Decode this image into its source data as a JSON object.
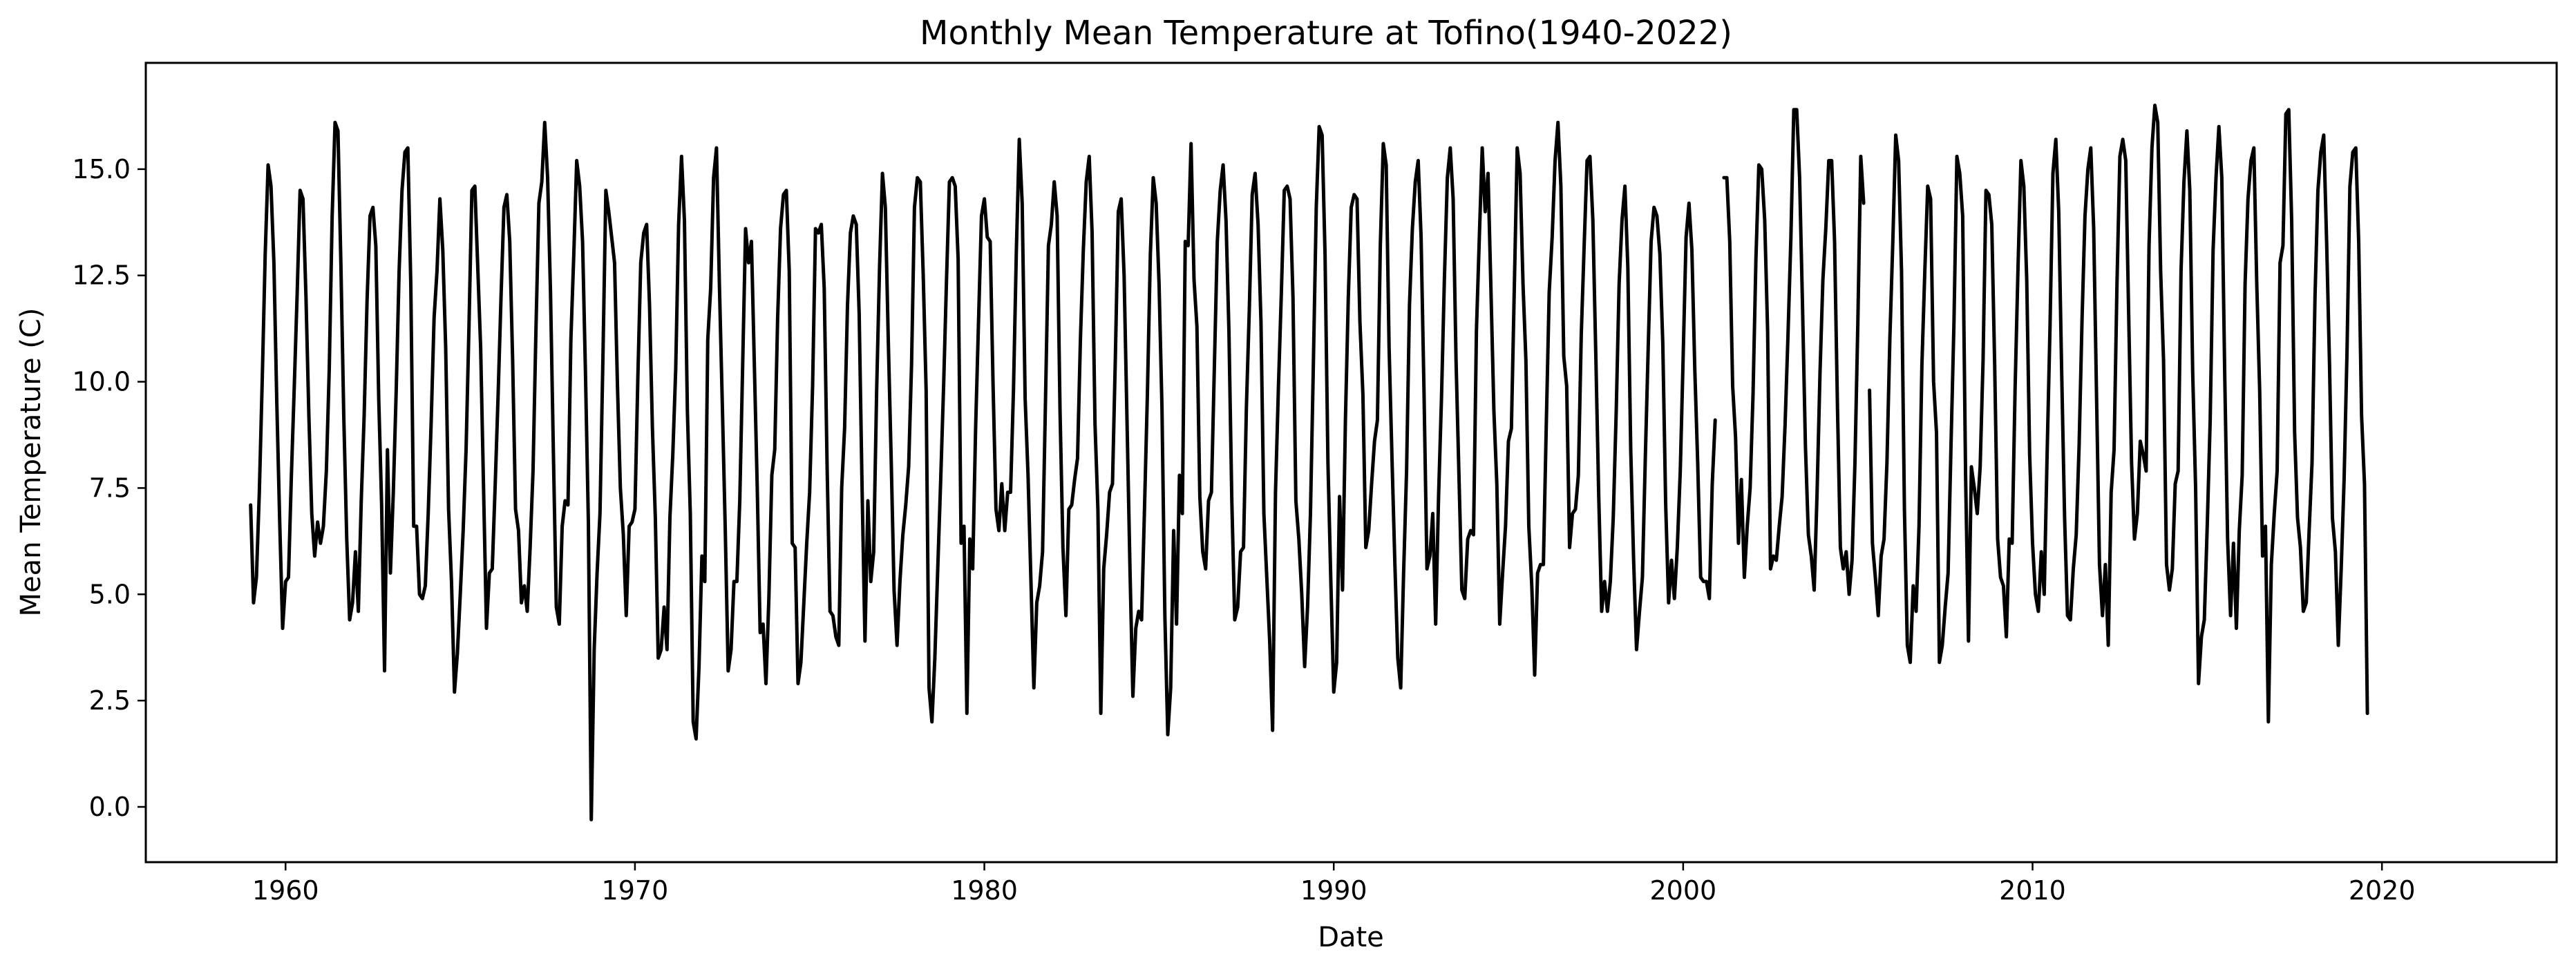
{
  "chart_data": {
    "type": "line",
    "title": "Monthly Mean Temperature at Tofino(1940-2022)",
    "xlabel": "Date",
    "ylabel": "Mean Temperature (C)",
    "xlim": [
      1956,
      2025
    ],
    "ylim": [
      -1.3,
      17.5
    ],
    "x_ticks": [
      1960,
      1970,
      1980,
      1990,
      2000,
      2010,
      2020
    ],
    "y_ticks": [
      0.0,
      2.5,
      5.0,
      7.5,
      10.0,
      12.5,
      15.0
    ],
    "y_tick_labels": [
      "0.0",
      "2.5",
      "5.0",
      "7.5",
      "10.0",
      "12.5",
      "15.0"
    ],
    "grid": false,
    "line_color": "#000000",
    "start_date": "1959-01",
    "series": [
      {
        "values": [
          7.1,
          4.8,
          5.4,
          7.4,
          10.1,
          13.0,
          15.1,
          14.6,
          12.8,
          9.5,
          6.7,
          4.2,
          5.3,
          5.4,
          7.8,
          9.9,
          12.1,
          14.5,
          14.3,
          12.0,
          9.2,
          6.9,
          5.9,
          6.7,
          6.2,
          6.6,
          7.9,
          10.3,
          13.9,
          16.1,
          15.9,
          12.8,
          9.2,
          6.3,
          4.4,
          4.8,
          6.0,
          4.6,
          7.2,
          9.2,
          11.9,
          13.9,
          14.1,
          13.2,
          9.6,
          7.1,
          3.2,
          8.4,
          5.5,
          7.4,
          9.8,
          12.6,
          14.5,
          15.4,
          15.5,
          12.3,
          6.6,
          6.6,
          5.0,
          4.9,
          5.2,
          6.9,
          9.0,
          11.5,
          12.6,
          14.3,
          13.1,
          10.8,
          7.0,
          5.3,
          2.7,
          3.6,
          5.0,
          6.5,
          8.4,
          11.3,
          14.5,
          14.6,
          12.7,
          10.8,
          7.5,
          4.2,
          5.5,
          5.6,
          7.6,
          9.7,
          12.0,
          14.1,
          14.4,
          13.3,
          10.5,
          7.0,
          6.5,
          4.8,
          5.2,
          4.6,
          6.1,
          7.9,
          11.2,
          14.2,
          14.7,
          16.1,
          14.8,
          12.1,
          8.3,
          4.7,
          4.3,
          6.6,
          7.2,
          7.1,
          11.0,
          13.0,
          15.2,
          14.6,
          13.3,
          10.2,
          6.7,
          -0.3,
          3.7,
          5.5,
          6.9,
          10.6,
          14.5,
          14.0,
          13.4,
          12.8,
          9.9,
          7.5,
          6.4,
          4.5,
          6.6,
          6.7,
          7.0,
          10.1,
          12.8,
          13.5,
          13.7,
          11.8,
          8.9,
          6.8,
          3.5,
          3.7,
          4.7,
          3.7,
          6.8,
          8.3,
          10.3,
          13.7,
          15.3,
          13.8,
          9.3,
          6.9,
          2.0,
          1.6,
          3.3,
          5.9,
          5.3,
          11.0,
          12.2,
          14.8,
          15.5,
          12.3,
          9.5,
          6.6,
          3.2,
          3.7,
          5.3,
          5.3,
          7.2,
          10.4,
          13.6,
          12.8,
          13.3,
          10.4,
          7.5,
          4.1,
          4.3,
          2.9,
          4.9,
          7.8,
          8.4,
          11.5,
          13.6,
          14.4,
          14.5,
          12.6,
          6.2,
          6.1,
          2.9,
          3.4,
          4.8,
          6.2,
          7.4,
          9.9,
          13.6,
          13.5,
          13.7,
          12.2,
          8.0,
          4.6,
          4.5,
          4.0,
          3.8,
          7.5,
          8.9,
          11.8,
          13.5,
          13.9,
          13.7,
          11.6,
          7.5,
          3.9,
          7.2,
          5.3,
          6.0,
          9.8,
          12.7,
          14.9,
          14.1,
          11.0,
          8.2,
          5.1,
          3.8,
          5.3,
          6.4,
          7.1,
          8.0,
          10.4,
          14.1,
          14.8,
          14.7,
          12.5,
          9.8,
          2.8,
          2.0,
          3.5,
          5.6,
          7.7,
          9.9,
          12.4,
          14.7,
          14.8,
          14.6,
          12.9,
          6.2,
          6.6,
          2.2,
          6.3,
          5.6,
          8.9,
          11.4,
          13.9,
          14.3,
          13.4,
          13.3,
          9.9,
          7.0,
          6.5,
          7.6,
          6.5,
          7.4,
          7.4,
          9.8,
          13.1,
          15.7,
          14.2,
          9.6,
          7.8,
          5.3,
          2.8,
          4.8,
          5.2,
          6.0,
          9.6,
          13.2,
          13.7,
          14.7,
          13.9,
          9.3,
          6.1,
          4.5,
          7.0,
          7.1,
          7.7,
          8.2,
          11.0,
          13.1,
          14.7,
          15.3,
          13.5,
          9.0,
          7.0,
          2.2,
          5.6,
          6.4,
          7.4,
          7.6,
          10.6,
          14.0,
          14.3,
          12.5,
          9.1,
          5.6,
          2.6,
          4.2,
          4.6,
          4.4,
          7.0,
          9.7,
          13.0,
          14.8,
          14.2,
          12.3,
          9.4,
          4.5,
          1.7,
          2.8,
          6.5,
          4.3,
          7.8,
          6.9,
          13.3,
          13.2,
          15.6,
          12.4,
          11.3,
          7.3,
          6.0,
          5.6,
          7.2,
          7.4,
          10.4,
          13.3,
          14.5,
          15.1,
          13.8,
          11.2,
          7.2,
          4.4,
          4.7,
          6.0,
          6.1,
          9.4,
          11.7,
          14.4,
          14.9,
          13.7,
          11.4,
          6.9,
          5.4,
          3.9,
          1.8,
          7.4,
          9.9,
          12.1,
          14.5,
          14.6,
          14.3,
          12.0,
          7.2,
          6.3,
          5.0,
          3.3,
          4.7,
          6.9,
          10.4,
          14.1,
          16.0,
          15.8,
          13.0,
          8.1,
          5.3,
          2.7,
          3.4,
          7.3,
          5.1,
          9.1,
          12.0,
          14.1,
          14.4,
          14.3,
          11.4,
          9.7,
          6.1,
          6.5,
          7.6,
          8.6,
          9.1,
          13.2,
          15.6,
          15.1,
          10.8,
          8.2,
          5.7,
          3.5,
          2.8,
          5.5,
          7.9,
          11.8,
          13.6,
          14.7,
          15.2,
          13.4,
          9.8,
          5.6,
          5.9,
          6.9,
          4.3,
          7.3,
          9.6,
          12.4,
          14.8,
          15.5,
          14.3,
          10.5,
          7.8,
          5.1,
          4.9,
          6.3,
          6.5,
          6.4,
          11.2,
          13.4,
          15.5,
          14.0,
          14.9,
          12.1,
          9.3,
          7.6,
          4.3,
          5.5,
          6.6,
          8.6,
          8.9,
          12.2,
          15.5,
          14.9,
          12.3,
          10.5,
          6.6,
          5.2,
          3.1,
          5.5,
          5.7,
          5.7,
          9.0,
          12.1,
          13.4,
          15.2,
          16.1,
          14.6,
          10.6,
          9.9,
          6.1,
          6.9,
          7.0,
          7.8,
          11.1,
          13.2,
          15.2,
          15.3,
          13.8,
          10.6,
          7.3,
          4.6,
          5.3,
          4.6,
          5.3,
          6.8,
          9.3,
          12.3,
          13.8,
          14.6,
          12.7,
          8.4,
          5.8,
          3.7,
          4.6,
          5.4,
          8.2,
          10.8,
          13.3,
          14.1,
          13.9,
          13.0,
          10.9,
          7.1,
          4.8,
          5.8,
          4.9,
          6.1,
          7.9,
          10.6,
          13.4,
          14.2,
          13.1,
          10.3,
          8.1,
          5.4,
          5.3,
          5.3,
          4.9,
          7.6,
          9.1,
          null,
          null,
          14.8,
          14.8,
          13.3,
          9.9,
          8.7,
          6.2,
          7.7,
          5.4,
          6.6,
          7.5,
          9.7,
          12.9,
          15.1,
          15.0,
          13.8,
          11.2,
          5.6,
          5.9,
          5.8,
          6.6,
          7.3,
          9.0,
          11.1,
          13.4,
          16.4,
          16.4,
          14.8,
          11.8,
          8.5,
          6.4,
          5.9,
          5.1,
          7.4,
          10.2,
          12.4,
          13.6,
          15.2,
          15.2,
          13.3,
          9.4,
          6.1,
          5.6,
          6.0,
          5.0,
          5.8,
          8.1,
          11.4,
          15.3,
          14.2,
          null,
          9.8,
          6.2,
          5.4,
          4.5,
          5.9,
          6.3,
          8.1,
          11.0,
          13.3,
          15.8,
          15.2,
          12.6,
          7.0,
          3.8,
          3.4,
          5.2,
          4.6,
          6.6,
          10.4,
          12.6,
          14.6,
          14.3,
          10.0,
          8.8,
          3.4,
          3.8,
          4.7,
          5.5,
          8.5,
          11.4,
          15.3,
          14.9,
          13.9,
          7.8,
          3.9,
          8.0,
          7.5,
          6.9,
          8.0,
          10.5,
          14.5,
          14.4,
          13.7,
          10.4,
          6.3,
          5.4,
          5.2,
          4.0,
          6.3,
          6.2,
          9.8,
          12.7,
          15.2,
          14.6,
          12.4,
          8.3,
          6.2,
          5.0,
          4.6,
          6.0,
          5.0,
          8.3,
          11.3,
          14.9,
          15.7,
          14.0,
          10.2,
          6.8,
          4.5,
          4.4,
          5.6,
          6.4,
          8.5,
          11.5,
          13.9,
          15.0,
          15.5,
          13.6,
          9.6,
          5.7,
          4.5,
          5.7,
          3.8,
          7.4,
          8.4,
          12.3,
          15.3,
          15.7,
          15.2,
          11.6,
          8.1,
          6.3,
          6.9,
          8.6,
          8.3,
          7.9,
          13.2,
          15.5,
          16.5,
          16.1,
          12.6,
          10.5,
          5.7,
          5.1,
          5.6,
          7.6,
          7.9,
          12.6,
          14.7,
          15.9,
          14.5,
          10.2,
          7.5,
          2.9,
          4.0,
          4.4,
          6.6,
          9.1,
          13.1,
          14.8,
          16.0,
          14.8,
          10.2,
          6.3,
          4.5,
          6.2,
          4.2,
          6.5,
          7.8,
          12.3,
          14.3,
          15.2,
          15.5,
          12.3,
          9.8,
          5.9,
          6.6,
          2.0,
          5.7,
          6.9,
          7.9,
          12.8,
          13.2,
          16.3,
          16.4,
          13.8,
          8.8,
          6.8,
          6.1,
          4.6,
          4.8,
          6.5,
          8.1,
          12.0,
          14.5,
          15.4,
          15.8,
          13.3,
          10.4,
          6.8,
          6.0,
          3.8,
          5.6,
          7.7,
          10.7,
          14.6,
          15.4,
          15.5,
          13.3,
          9.2,
          7.6,
          2.2
        ]
      }
    ]
  }
}
